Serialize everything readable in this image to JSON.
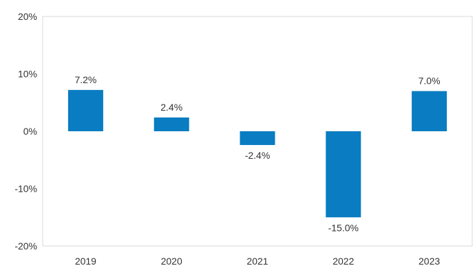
{
  "chart_data": {
    "type": "bar",
    "categories": [
      "2019",
      "2020",
      "2021",
      "2022",
      "2023"
    ],
    "values": [
      7.2,
      2.4,
      -2.4,
      -15.0,
      7.0
    ],
    "data_labels": [
      "7.2%",
      "2.4%",
      "-2.4%",
      "-15.0%",
      "7.0%"
    ],
    "yticks": [
      20,
      10,
      0,
      -10,
      -20
    ],
    "ytick_labels": [
      "20%",
      "10%",
      "0%",
      "-10%",
      "-20%"
    ],
    "ylim": [
      -20,
      20
    ],
    "grid": false,
    "bar_color": "#0a7cc1",
    "title": "",
    "xlabel": "",
    "ylabel": ""
  }
}
